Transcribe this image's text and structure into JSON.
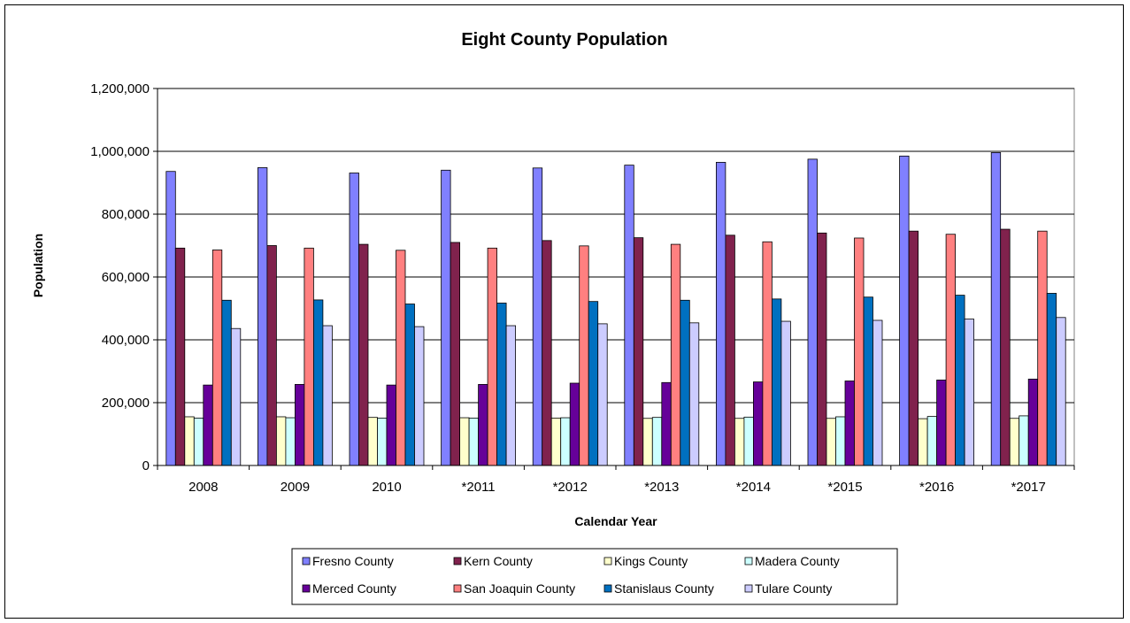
{
  "chart_data": {
    "type": "bar",
    "title": "Eight County Population",
    "xlabel": "Calendar Year",
    "ylabel": "Population",
    "ylim": [
      0,
      1200000
    ],
    "yticks": [
      0,
      200000,
      400000,
      600000,
      800000,
      1000000,
      1200000
    ],
    "ytick_labels": [
      "0",
      "200,000",
      "400,000",
      "600,000",
      "800,000",
      "1,000,000",
      "1,200,000"
    ],
    "grid": true,
    "legend_position": "bottom",
    "categories": [
      "2008",
      "2009",
      "2010",
      "*2011",
      "*2012",
      "*2013",
      "*2014",
      "*2015",
      "*2016",
      "*2017"
    ],
    "series": [
      {
        "name": "Fresno County",
        "color": "#8080ff",
        "values": [
          936000,
          948000,
          931000,
          940000,
          947000,
          956000,
          965000,
          975000,
          985000,
          996000
        ]
      },
      {
        "name": "Kern County",
        "color": "#80224d",
        "values": [
          692000,
          700000,
          704000,
          710000,
          716000,
          725000,
          733000,
          740000,
          746000,
          752000
        ]
      },
      {
        "name": "Kings County",
        "color": "#ffffcc",
        "values": [
          155000,
          155000,
          153000,
          152000,
          151000,
          150000,
          150000,
          150000,
          149000,
          150000
        ]
      },
      {
        "name": "Madera County",
        "color": "#ccffff",
        "values": [
          151000,
          152000,
          151000,
          151000,
          152000,
          153000,
          154000,
          155000,
          156000,
          158000
        ]
      },
      {
        "name": "Merced County",
        "color": "#660099",
        "values": [
          256000,
          258000,
          256000,
          258000,
          262000,
          264000,
          266000,
          269000,
          272000,
          275000
        ]
      },
      {
        "name": "San Joaquin County",
        "color": "#ff8080",
        "values": [
          686000,
          692000,
          685000,
          692000,
          699000,
          704000,
          712000,
          724000,
          736000,
          746000
        ]
      },
      {
        "name": "Stanislaus County",
        "color": "#0070c0",
        "values": [
          526000,
          527000,
          514000,
          517000,
          522000,
          526000,
          530000,
          536000,
          542000,
          548000
        ]
      },
      {
        "name": "Tulare County",
        "color": "#ccccff",
        "values": [
          436000,
          445000,
          442000,
          445000,
          451000,
          454000,
          459000,
          462000,
          466000,
          471000
        ]
      }
    ]
  }
}
